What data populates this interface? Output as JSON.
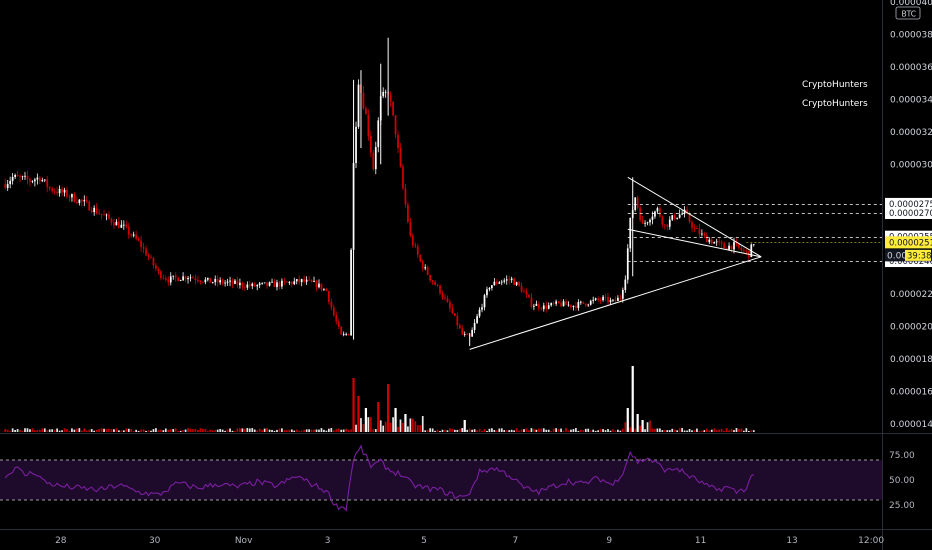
{
  "currency_badge": "BTC",
  "watermarks": [
    "CryptoHunters",
    "CryptoHunters"
  ],
  "colors": {
    "background": "#000000",
    "up": "#ffffff",
    "down": "#d50000",
    "rsi_line": "#7b1fa2",
    "rsi_band": "#1e0a2a",
    "current_badge": "#ffeb3b",
    "level_line": "#ffffff",
    "axis_text": "#d1d4dc"
  },
  "price_axis": {
    "ticks": [
      "0.00004000",
      "0.00003800",
      "0.00003600",
      "0.00003400",
      "0.00003200",
      "0.00003000",
      "0.00002200",
      "0.00002000",
      "0.00001800",
      "0.00001600",
      "0.00001400"
    ],
    "tick_values": [
      4e-05,
      3.8e-05,
      3.6e-05,
      3.4e-05,
      3.2e-05,
      3e-05,
      2.2e-05,
      2e-05,
      1.8e-05,
      1.6e-05,
      1.4e-05
    ]
  },
  "level_labels": [
    {
      "text": "0.00002756",
      "value": 2.756e-05,
      "dashed": true
    },
    {
      "text": "0.00002700",
      "value": 2.7e-05,
      "dashed": true
    },
    {
      "text": "0.00002554",
      "value": 2.554e-05,
      "dashed": true
    },
    {
      "text": "0.00002404",
      "value": 2.404e-05,
      "dashed": true
    }
  ],
  "current_price": {
    "text": "0.00002519",
    "value": 2.519e-05,
    "countdown": "39:38",
    "countdown_prefix": "0.000"
  },
  "time_axis": {
    "labels": [
      "28",
      "30",
      "Nov",
      "3",
      "5",
      "7",
      "9",
      "11",
      "13",
      "12:00"
    ]
  },
  "rsi": {
    "ticks": [
      "75.00",
      "50.00",
      "25.00"
    ],
    "tick_values": [
      75,
      50,
      25
    ],
    "upper": 70,
    "lower": 30
  },
  "chart_data": {
    "type": "candlestick",
    "symbol_quote": "BTC",
    "x_labels": [
      "28",
      "30",
      "Nov",
      "3",
      "5",
      "7",
      "9",
      "11",
      "13",
      "12:00"
    ],
    "ylim": [
      1.3e-05,
      4e-05
    ],
    "close_series": [
      {
        "i": 0,
        "v": 2.88e-05
      },
      {
        "i": 3,
        "v": 2.92e-05
      },
      {
        "i": 7,
        "v": 2.91e-05
      },
      {
        "i": 10,
        "v": 2.9e-05
      },
      {
        "i": 14,
        "v": 2.92e-05
      },
      {
        "i": 18,
        "v": 2.85e-05
      },
      {
        "i": 24,
        "v": 2.82e-05
      },
      {
        "i": 32,
        "v": 2.76e-05
      },
      {
        "i": 40,
        "v": 2.68e-05
      },
      {
        "i": 48,
        "v": 2.61e-05
      },
      {
        "i": 54,
        "v": 2.52e-05
      },
      {
        "i": 58,
        "v": 2.43e-05
      },
      {
        "i": 62,
        "v": 2.33e-05
      },
      {
        "i": 66,
        "v": 2.29e-05
      },
      {
        "i": 74,
        "v": 2.31e-05
      },
      {
        "i": 82,
        "v": 2.28e-05
      },
      {
        "i": 90,
        "v": 2.27e-05
      },
      {
        "i": 100,
        "v": 2.25e-05
      },
      {
        "i": 110,
        "v": 2.26e-05
      },
      {
        "i": 120,
        "v": 2.28e-05
      },
      {
        "i": 126,
        "v": 2.26e-05
      },
      {
        "i": 130,
        "v": 2.22e-05
      },
      {
        "i": 133,
        "v": 2.07e-05
      },
      {
        "i": 136,
        "v": 1.94e-05
      },
      {
        "i": 139,
        "v": 1.96e-05
      },
      {
        "i": 141,
        "v": 3e-05
      },
      {
        "i": 143,
        "v": 3.52e-05
      },
      {
        "i": 146,
        "v": 3.3e-05
      },
      {
        "i": 149,
        "v": 2.98e-05
      },
      {
        "i": 152,
        "v": 3.4e-05
      },
      {
        "i": 155,
        "v": 3.45e-05
      },
      {
        "i": 158,
        "v": 3.2e-05
      },
      {
        "i": 161,
        "v": 2.85e-05
      },
      {
        "i": 164,
        "v": 2.55e-05
      },
      {
        "i": 168,
        "v": 2.4e-05
      },
      {
        "i": 172,
        "v": 2.3e-05
      },
      {
        "i": 176,
        "v": 2.22e-05
      },
      {
        "i": 181,
        "v": 2.08e-05
      },
      {
        "i": 185,
        "v": 1.95e-05
      },
      {
        "i": 188,
        "v": 1.93e-05
      },
      {
        "i": 192,
        "v": 2.1e-05
      },
      {
        "i": 196,
        "v": 2.25e-05
      },
      {
        "i": 200,
        "v": 2.28e-05
      },
      {
        "i": 205,
        "v": 2.29e-05
      },
      {
        "i": 209,
        "v": 2.23e-05
      },
      {
        "i": 213,
        "v": 2.14e-05
      },
      {
        "i": 218,
        "v": 2.12e-05
      },
      {
        "i": 224,
        "v": 2.14e-05
      },
      {
        "i": 230,
        "v": 2.13e-05
      },
      {
        "i": 236,
        "v": 2.15e-05
      },
      {
        "i": 242,
        "v": 2.17e-05
      },
      {
        "i": 246,
        "v": 2.15e-05
      },
      {
        "i": 249,
        "v": 2.18e-05
      },
      {
        "i": 251,
        "v": 2.31e-05
      },
      {
        "i": 253,
        "v": 2.65e-05
      },
      {
        "i": 255,
        "v": 2.8e-05
      },
      {
        "i": 258,
        "v": 2.62e-05
      },
      {
        "i": 261,
        "v": 2.68e-05
      },
      {
        "i": 264,
        "v": 2.72e-05
      },
      {
        "i": 267,
        "v": 2.62e-05
      },
      {
        "i": 271,
        "v": 2.68e-05
      },
      {
        "i": 275,
        "v": 2.7e-05
      },
      {
        "i": 279,
        "v": 2.6e-05
      },
      {
        "i": 283,
        "v": 2.55e-05
      },
      {
        "i": 287,
        "v": 2.52e-05
      },
      {
        "i": 291,
        "v": 2.49e-05
      },
      {
        "i": 295,
        "v": 2.5e-05
      },
      {
        "i": 298,
        "v": 2.47e-05
      },
      {
        "i": 301,
        "v": 2.45e-05
      },
      {
        "i": 303,
        "v": 2.52e-05
      }
    ],
    "rsi_series": [
      {
        "i": 0,
        "v": 52
      },
      {
        "i": 4,
        "v": 63
      },
      {
        "i": 8,
        "v": 55
      },
      {
        "i": 12,
        "v": 58
      },
      {
        "i": 16,
        "v": 48
      },
      {
        "i": 22,
        "v": 44
      },
      {
        "i": 30,
        "v": 42
      },
      {
        "i": 38,
        "v": 40
      },
      {
        "i": 46,
        "v": 45
      },
      {
        "i": 54,
        "v": 38
      },
      {
        "i": 62,
        "v": 35
      },
      {
        "i": 70,
        "v": 47
      },
      {
        "i": 78,
        "v": 42
      },
      {
        "i": 86,
        "v": 46
      },
      {
        "i": 94,
        "v": 43
      },
      {
        "i": 102,
        "v": 48
      },
      {
        "i": 110,
        "v": 44
      },
      {
        "i": 118,
        "v": 54
      },
      {
        "i": 124,
        "v": 46
      },
      {
        "i": 130,
        "v": 39
      },
      {
        "i": 134,
        "v": 24
      },
      {
        "i": 138,
        "v": 22
      },
      {
        "i": 141,
        "v": 72
      },
      {
        "i": 144,
        "v": 82
      },
      {
        "i": 148,
        "v": 64
      },
      {
        "i": 152,
        "v": 68
      },
      {
        "i": 156,
        "v": 59
      },
      {
        "i": 160,
        "v": 56
      },
      {
        "i": 165,
        "v": 45
      },
      {
        "i": 170,
        "v": 42
      },
      {
        "i": 176,
        "v": 40
      },
      {
        "i": 182,
        "v": 34
      },
      {
        "i": 187,
        "v": 33
      },
      {
        "i": 192,
        "v": 58
      },
      {
        "i": 198,
        "v": 62
      },
      {
        "i": 204,
        "v": 55
      },
      {
        "i": 210,
        "v": 42
      },
      {
        "i": 216,
        "v": 38
      },
      {
        "i": 222,
        "v": 44
      },
      {
        "i": 228,
        "v": 49
      },
      {
        "i": 234,
        "v": 46
      },
      {
        "i": 240,
        "v": 52
      },
      {
        "i": 246,
        "v": 45
      },
      {
        "i": 250,
        "v": 58
      },
      {
        "i": 253,
        "v": 78
      },
      {
        "i": 256,
        "v": 68
      },
      {
        "i": 260,
        "v": 72
      },
      {
        "i": 264,
        "v": 66
      },
      {
        "i": 268,
        "v": 59
      },
      {
        "i": 272,
        "v": 62
      },
      {
        "i": 276,
        "v": 55
      },
      {
        "i": 280,
        "v": 50
      },
      {
        "i": 284,
        "v": 44
      },
      {
        "i": 288,
        "v": 40
      },
      {
        "i": 292,
        "v": 43
      },
      {
        "i": 296,
        "v": 38
      },
      {
        "i": 300,
        "v": 42
      },
      {
        "i": 303,
        "v": 58
      }
    ],
    "volume_spikes": [
      {
        "i": 141,
        "v": 9
      },
      {
        "i": 143,
        "v": 6
      },
      {
        "i": 146,
        "v": 4
      },
      {
        "i": 151,
        "v": 5
      },
      {
        "i": 155,
        "v": 8
      },
      {
        "i": 158,
        "v": 4
      },
      {
        "i": 162,
        "v": 3
      },
      {
        "i": 186,
        "v": 2
      },
      {
        "i": 252,
        "v": 4
      },
      {
        "i": 254,
        "v": 11
      },
      {
        "i": 256,
        "v": 3
      },
      {
        "i": 258,
        "v": 2
      }
    ],
    "trendlines": [
      {
        "name": "support",
        "from": {
          "i": 188,
          "v": 1.86e-05
        },
        "to": {
          "i": 306,
          "v": 2.43e-05
        }
      },
      {
        "name": "resistance",
        "from": {
          "i": 252,
          "v": 2.92e-05
        },
        "to": {
          "i": 306,
          "v": 2.43e-05
        }
      },
      {
        "name": "support-2",
        "from": {
          "i": 252,
          "v": 2.6e-05
        },
        "to": {
          "i": 306,
          "v": 2.43e-05
        }
      }
    ],
    "candle_count": 304
  }
}
